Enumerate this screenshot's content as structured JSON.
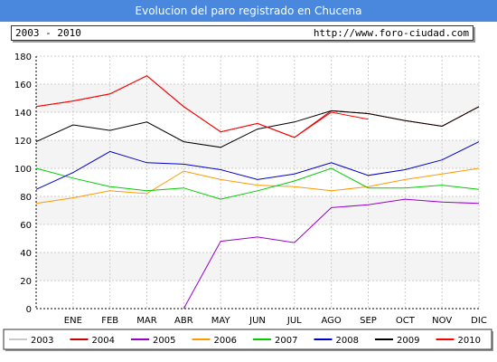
{
  "page": {
    "title": "Evolucion del paro registrado en Chucena",
    "period": "2003 - 2010",
    "website": "http://www.foro-ciudad.com"
  },
  "chart_data": {
    "type": "line",
    "title": "Evolucion del paro registrado en Chucena",
    "categories": [
      "",
      "ENE",
      "FEB",
      "MAR",
      "ABR",
      "MAY",
      "JUN",
      "JUL",
      "AGO",
      "SEP",
      "OCT",
      "NOV",
      "DIC"
    ],
    "ylim": [
      0,
      180
    ],
    "yticks": [
      0,
      20,
      40,
      60,
      80,
      100,
      120,
      140,
      160,
      180
    ],
    "grid": true,
    "legend_position": "bottom",
    "series": [
      {
        "name": "2003",
        "color": "#c8c8c8",
        "values": [
          null,
          null,
          null,
          null,
          null,
          null,
          null,
          null,
          null,
          null,
          null,
          null,
          null
        ]
      },
      {
        "name": "2004",
        "color": "#cc0000",
        "values": [
          144,
          148,
          153,
          166,
          144,
          126,
          132,
          122,
          141,
          139,
          134,
          130,
          144
        ]
      },
      {
        "name": "2005",
        "color": "#9900cc",
        "values": [
          null,
          null,
          null,
          null,
          0,
          48,
          51,
          47,
          72,
          74,
          78,
          76,
          75
        ]
      },
      {
        "name": "2006",
        "color": "#ff9900",
        "values": [
          75,
          79,
          84,
          82,
          98,
          92,
          88,
          87,
          84,
          87,
          92,
          96,
          100
        ]
      },
      {
        "name": "2007",
        "color": "#00cc00",
        "values": [
          100,
          93,
          87,
          84,
          86,
          78,
          84,
          91,
          100,
          86,
          86,
          88,
          85
        ]
      },
      {
        "name": "2008",
        "color": "#0000cc",
        "values": [
          85,
          97,
          112,
          104,
          103,
          99,
          92,
          96,
          104,
          95,
          99,
          106,
          119
        ]
      },
      {
        "name": "2009",
        "color": "#000000",
        "values": [
          119,
          131,
          127,
          133,
          119,
          115,
          128,
          133,
          141,
          139,
          134,
          130,
          144
        ]
      },
      {
        "name": "2010",
        "color": "#ff0000",
        "values": [
          144,
          148,
          153,
          166,
          144,
          126,
          132,
          122,
          140,
          135,
          null,
          null,
          null
        ]
      }
    ]
  }
}
